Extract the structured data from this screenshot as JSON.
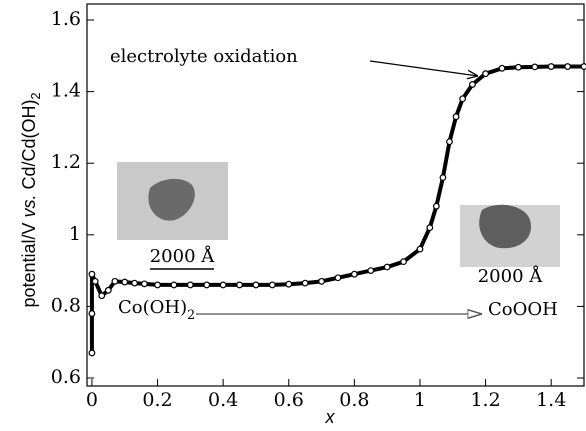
{
  "chart_data": {
    "type": "line",
    "xlabel": "x",
    "ylabel": [
      "potential/V ",
      "vs.",
      " Cd/Cd(OH)",
      "2"
    ],
    "x": [
      0,
      0,
      0,
      0.01,
      0.03,
      0.05,
      0.07,
      0.1,
      0.13,
      0.16,
      0.2,
      0.25,
      0.3,
      0.35,
      0.4,
      0.45,
      0.5,
      0.55,
      0.6,
      0.65,
      0.7,
      0.75,
      0.8,
      0.85,
      0.9,
      0.95,
      1.0,
      1.03,
      1.05,
      1.07,
      1.09,
      1.11,
      1.13,
      1.16,
      1.2,
      1.25,
      1.3,
      1.35,
      1.4,
      1.45,
      1.5
    ],
    "values": [
      0.67,
      0.78,
      0.89,
      0.87,
      0.83,
      0.845,
      0.87,
      0.868,
      0.865,
      0.863,
      0.86,
      0.86,
      0.86,
      0.86,
      0.86,
      0.86,
      0.86,
      0.86,
      0.862,
      0.865,
      0.87,
      0.88,
      0.89,
      0.9,
      0.91,
      0.925,
      0.96,
      1.02,
      1.08,
      1.16,
      1.26,
      1.33,
      1.38,
      1.42,
      1.45,
      1.465,
      1.468,
      1.469,
      1.47,
      1.47,
      1.47
    ],
    "color": "#000000",
    "xlim": [
      -0.015,
      1.5
    ],
    "xticks": [
      0,
      0.2,
      0.4,
      0.6,
      0.8,
      1,
      1.2,
      1.4
    ],
    "ylim": [
      0.6,
      1.6
    ],
    "yticks": [
      0.6,
      0.8,
      1,
      1.2,
      1.4,
      1.6
    ],
    "annotations": [
      [
        "electrolyte oxidation"
      ],
      [
        "Co(OH)",
        "2"
      ],
      [
        "CoOOH"
      ],
      [
        "2000 Å"
      ],
      [
        "2000 Å"
      ]
    ]
  }
}
